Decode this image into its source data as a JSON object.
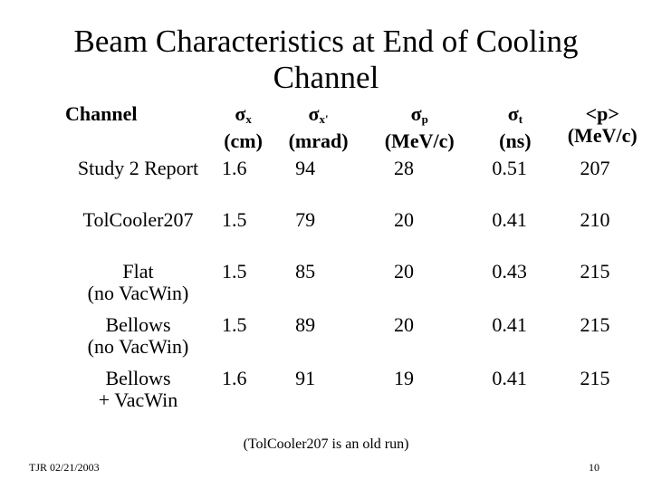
{
  "title": {
    "line1": "Beam Characteristics at End of Cooling",
    "line2": "Channel"
  },
  "table": {
    "headers": [
      {
        "label": "Channel",
        "symbol": "",
        "sub": "",
        "unit": ""
      },
      {
        "label": "",
        "symbol": "σ",
        "sub": "x",
        "unit": "(cm)"
      },
      {
        "label": "",
        "symbol": "σ",
        "sub": "x'",
        "unit": "(mrad)"
      },
      {
        "label": "",
        "symbol": "σ",
        "sub": "p",
        "unit": "(MeV/c)"
      },
      {
        "label": "",
        "symbol": "σ",
        "sub": "t",
        "unit": "(ns)"
      },
      {
        "label": "<p>",
        "symbol": "",
        "sub": "",
        "unit": "(MeV/c)"
      }
    ],
    "rows": [
      {
        "name1": "Study 2 Report",
        "name2": "",
        "sx": "1.6",
        "sxp": "94",
        "sp": "28",
        "st": "0.51",
        "p": "207"
      },
      {
        "name1": "TolCooler207",
        "name2": "",
        "sx": "1.5",
        "sxp": "79",
        "sp": "20",
        "st": "0.41",
        "p": "210"
      },
      {
        "name1": "Flat",
        "name2": "(no VacWin)",
        "sx": "1.5",
        "sxp": "85",
        "sp": "20",
        "st": "0.43",
        "p": "215"
      },
      {
        "name1": "Bellows",
        "name2": "(no VacWin)",
        "sx": "1.5",
        "sxp": "89",
        "sp": "20",
        "st": "0.41",
        "p": "215"
      },
      {
        "name1": "Bellows",
        "name2": "+ VacWin",
        "sx": "1.6",
        "sxp": "91",
        "sp": "19",
        "st": "0.41",
        "p": "215"
      }
    ]
  },
  "note": "(TolCooler207 is an old run)",
  "footer": {
    "left": "TJR 02/21/2003",
    "page_number": "10"
  }
}
